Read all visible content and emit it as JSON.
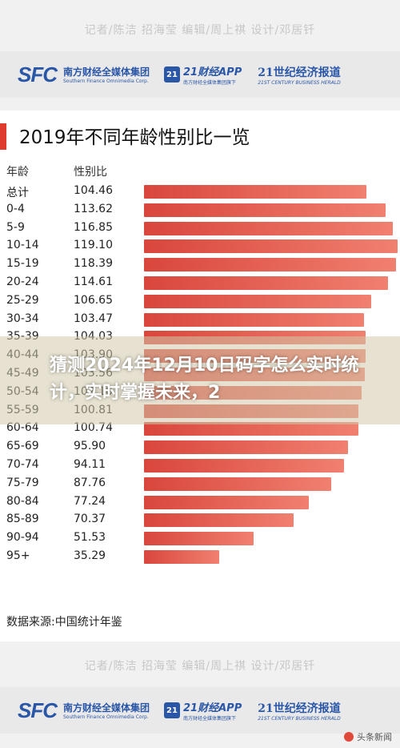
{
  "top_credit": "记者/陈洁 招海莹 编辑/周上祺 设计/邓居钎",
  "brand": {
    "sfc": "SFC",
    "group_cn": "南方财经全媒体集团",
    "group_en": "Southern Finance Omnimedia Corp.",
    "app_badge": "21",
    "app_cn": "21财经APP",
    "app_en": "南方财经全媒体集团旗下",
    "herald_cn": "21世纪经济报道",
    "herald_en": "21ST CENTURY BUSINESS HERALD"
  },
  "colors": {
    "bar_start": "#d9463c",
    "bar_end": "#f08070",
    "accent": "#e03b2f",
    "brand_blue": "#2a56a8"
  },
  "overlay_text": "猜测2024年12月10日码字怎么实时统计，实时掌握未来，2",
  "watermark": "头条新闻",
  "chart_data": {
    "type": "bar",
    "title": "2019年不同年龄性别比一览",
    "col_headers": [
      "年龄",
      "性别比"
    ],
    "categories": [
      "总计",
      "0-4",
      "5-9",
      "10-14",
      "15-19",
      "20-24",
      "25-29",
      "30-34",
      "35-39",
      "40-44",
      "45-49",
      "50-54",
      "55-59",
      "60-64",
      "65-69",
      "70-74",
      "75-79",
      "80-84",
      "85-89",
      "90-94",
      "95+"
    ],
    "values": [
      104.46,
      113.62,
      116.85,
      119.1,
      118.39,
      114.61,
      106.65,
      103.47,
      104.03,
      103.9,
      103.56,
      102.1,
      100.81,
      100.74,
      95.9,
      94.11,
      87.76,
      77.24,
      70.37,
      51.53,
      35.29
    ],
    "value_labels": [
      "104.46",
      "113.62",
      "116.85",
      "119.10",
      "118.39",
      "114.61",
      "106.65",
      "103.47",
      "104.03",
      "103.90",
      "103.56",
      "102.10",
      "100.81",
      "100.74",
      "95.90",
      "94.11",
      "87.76",
      "77.24",
      "70.37",
      "51.53",
      "35.29"
    ],
    "source": "数据来源:中国统计年鉴",
    "legend": "none"
  }
}
